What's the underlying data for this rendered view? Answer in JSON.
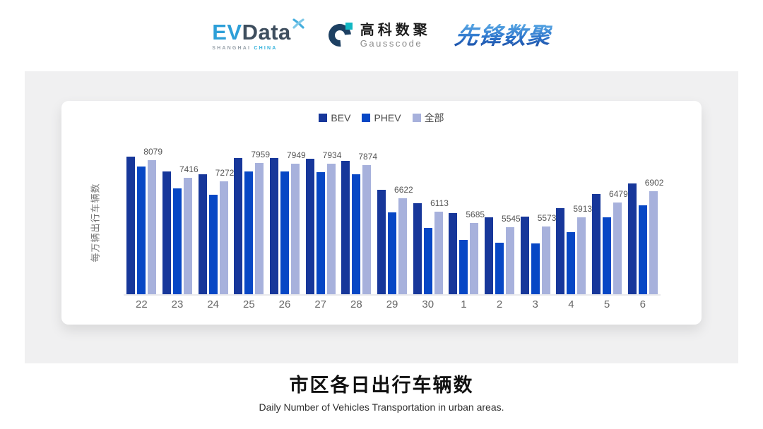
{
  "header": {
    "logos": {
      "evdata": {
        "ev": "EV",
        "data": "Data",
        "sub_left": "SHANGHAI",
        "sub_right": "CHINA"
      },
      "gausscode": {
        "cn": "高科数聚",
        "en": "Gausscode"
      },
      "xianfeng": {
        "text": "先锋数聚"
      }
    }
  },
  "chart_data": {
    "type": "bar",
    "title": "市区各日出行车辆数",
    "ylabel": "每万辆出行车辆数",
    "xlabel": "",
    "categories": [
      "22",
      "23",
      "24",
      "25",
      "26",
      "27",
      "28",
      "29",
      "30",
      "1",
      "2",
      "3",
      "4",
      "5",
      "6"
    ],
    "series": [
      {
        "key": "bev",
        "name": "BEV",
        "color": "#17379a",
        "values": [
          8210,
          7650,
          7540,
          8150,
          8160,
          8130,
          8040,
          6940,
          6450,
          6080,
          5920,
          5940,
          6260,
          6780,
          7200
        ],
        "labeled": false
      },
      {
        "key": "phev",
        "name": "PHEV",
        "color": "#0747c5",
        "values": [
          7840,
          7000,
          6770,
          7650,
          7640,
          7610,
          7550,
          6100,
          5520,
          5060,
          4940,
          4920,
          5350,
          5920,
          6370
        ],
        "labeled": false
      },
      {
        "key": "all",
        "name": "全部",
        "color": "#a7b1dc",
        "values": [
          8079,
          7416,
          7272,
          7959,
          7949,
          7934,
          7874,
          6622,
          6113,
          5685,
          5545,
          5573,
          5913,
          6479,
          6902
        ],
        "labeled": true
      }
    ],
    "data_labels": [
      8079,
      7416,
      7272,
      7959,
      7949,
      7934,
      7874,
      6622,
      6113,
      5685,
      5545,
      5573,
      5913,
      6479,
      6902
    ],
    "ylim": [
      3000,
      8500
    ],
    "grid": false,
    "legend_position": "top"
  },
  "footer": {
    "title": "市区各日出行车辆数",
    "subtitle": "Daily Number of Vehicles Transportation in urban areas."
  }
}
